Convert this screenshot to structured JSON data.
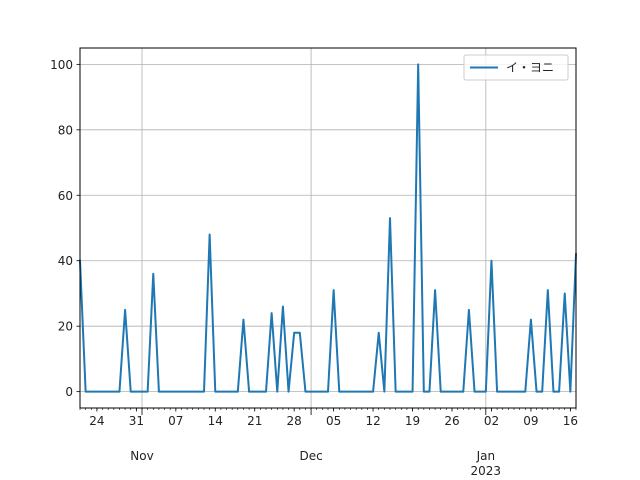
{
  "chart_data": {
    "type": "line",
    "title": "",
    "xlabel": "",
    "ylabel": "",
    "start_date": "2022-10-21",
    "end_date": "2023-01-17",
    "xlim": [
      "2022-10-21",
      "2023-01-17"
    ],
    "ylim": [
      -5,
      105
    ],
    "grid": true,
    "legend_position": "top-right",
    "y_ticks": [
      0,
      20,
      40,
      60,
      80,
      100
    ],
    "x_day_ticks": [
      {
        "date": "2022-10-24",
        "label": "24"
      },
      {
        "date": "2022-10-31",
        "label": "31"
      },
      {
        "date": "2022-11-07",
        "label": "07"
      },
      {
        "date": "2022-11-14",
        "label": "14"
      },
      {
        "date": "2022-11-21",
        "label": "21"
      },
      {
        "date": "2022-11-28",
        "label": "28"
      },
      {
        "date": "2022-12-05",
        "label": "05"
      },
      {
        "date": "2022-12-12",
        "label": "12"
      },
      {
        "date": "2022-12-19",
        "label": "19"
      },
      {
        "date": "2022-12-26",
        "label": "26"
      },
      {
        "date": "2023-01-02",
        "label": "02"
      },
      {
        "date": "2023-01-09",
        "label": "09"
      },
      {
        "date": "2023-01-16",
        "label": "16"
      }
    ],
    "x_month_ticks": [
      {
        "date": "2022-11-01",
        "label": "Nov"
      },
      {
        "date": "2022-12-01",
        "label": "Dec"
      },
      {
        "date": "2023-01-01",
        "label": "Jan",
        "sublabel": "2023"
      }
    ],
    "series": [
      {
        "name": "イ・ヨニ",
        "color": "#1f77b4",
        "points": [
          [
            "2022-10-21",
            40
          ],
          [
            "2022-10-22",
            0
          ],
          [
            "2022-10-28",
            0
          ],
          [
            "2022-10-29",
            25
          ],
          [
            "2022-10-30",
            0
          ],
          [
            "2022-11-02",
            0
          ],
          [
            "2022-11-03",
            36
          ],
          [
            "2022-11-04",
            0
          ],
          [
            "2022-11-12",
            0
          ],
          [
            "2022-11-13",
            48
          ],
          [
            "2022-11-14",
            0
          ],
          [
            "2022-11-18",
            0
          ],
          [
            "2022-11-19",
            22
          ],
          [
            "2022-11-20",
            0
          ],
          [
            "2022-11-23",
            0
          ],
          [
            "2022-11-24",
            24
          ],
          [
            "2022-11-25",
            0
          ],
          [
            "2022-11-26",
            26
          ],
          [
            "2022-11-27",
            0
          ],
          [
            "2022-11-28",
            18
          ],
          [
            "2022-11-29",
            18
          ],
          [
            "2022-11-30",
            0
          ],
          [
            "2022-12-04",
            0
          ],
          [
            "2022-12-05",
            31
          ],
          [
            "2022-12-06",
            0
          ],
          [
            "2022-12-12",
            0
          ],
          [
            "2022-12-13",
            18
          ],
          [
            "2022-12-14",
            0
          ],
          [
            "2022-12-15",
            53
          ],
          [
            "2022-12-16",
            0
          ],
          [
            "2022-12-19",
            0
          ],
          [
            "2022-12-20",
            100
          ],
          [
            "2022-12-21",
            0
          ],
          [
            "2022-12-22",
            0
          ],
          [
            "2022-12-23",
            31
          ],
          [
            "2022-12-24",
            0
          ],
          [
            "2022-12-28",
            0
          ],
          [
            "2022-12-29",
            25
          ],
          [
            "2022-12-30",
            0
          ],
          [
            "2023-01-01",
            0
          ],
          [
            "2023-01-02",
            40
          ],
          [
            "2023-01-03",
            0
          ],
          [
            "2023-01-08",
            0
          ],
          [
            "2023-01-09",
            22
          ],
          [
            "2023-01-10",
            0
          ],
          [
            "2023-01-11",
            0
          ],
          [
            "2023-01-12",
            31
          ],
          [
            "2023-01-13",
            0
          ],
          [
            "2023-01-14",
            0
          ],
          [
            "2023-01-15",
            30
          ],
          [
            "2023-01-16",
            0
          ],
          [
            "2023-01-17",
            42
          ]
        ]
      }
    ]
  }
}
